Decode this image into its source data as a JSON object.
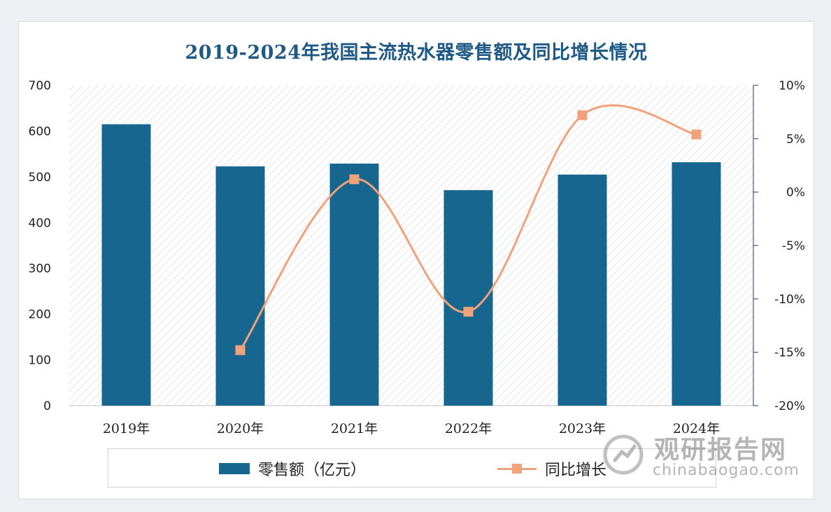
{
  "chart_data": {
    "type": "bar",
    "title": "2019-2024年我国主流热水器零售额及同比增长情况",
    "categories": [
      "2019年",
      "2020年",
      "2021年",
      "2022年",
      "2023年",
      "2024年"
    ],
    "series": [
      {
        "name": "零售额（亿元）",
        "type": "bar",
        "axis": "left",
        "values": [
          615,
          523,
          529,
          471,
          505,
          532
        ]
      },
      {
        "name": "同比增长",
        "type": "line",
        "axis": "right",
        "values": [
          null,
          -14.8,
          1.2,
          -11.2,
          7.2,
          5.4
        ]
      }
    ],
    "y_left": {
      "min": 0,
      "max": 700,
      "ticks": [
        "0",
        "100",
        "200",
        "300",
        "400",
        "500",
        "600",
        "700"
      ]
    },
    "y_right": {
      "min": -20,
      "max": 10,
      "ticks": [
        "-20%",
        "-15%",
        "-10%",
        "-5%",
        "0%",
        "5%",
        "10%"
      ]
    },
    "legend_position": "bottom",
    "colors": {
      "bar": "#17668f",
      "line": "#f0a27a"
    }
  },
  "watermark": {
    "cn": "观研报告网",
    "en": "chinabaogao.com"
  }
}
